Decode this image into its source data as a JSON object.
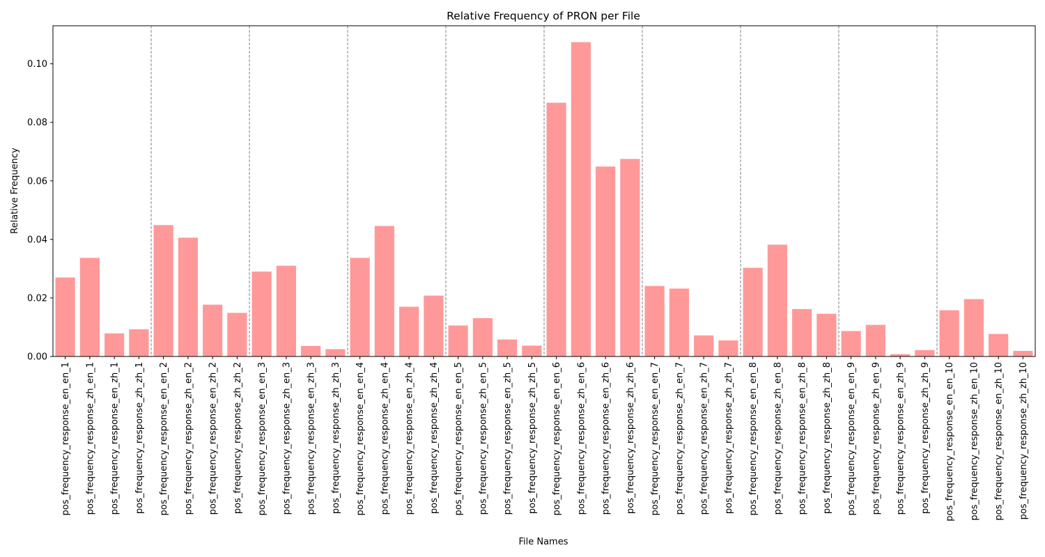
{
  "chart_data": {
    "type": "bar",
    "title": "Relative Frequency of PRON per File",
    "xlabel": "File Names",
    "ylabel": "Relative Frequency",
    "ylim": [
      0,
      0.113
    ],
    "yticks": [
      0.0,
      0.02,
      0.04,
      0.06,
      0.08,
      0.1
    ],
    "ytick_labels": [
      "0.00",
      "0.02",
      "0.04",
      "0.06",
      "0.08",
      "0.10"
    ],
    "bar_color": "#ff9999",
    "group_separator_color": "#808080",
    "group_size": 4,
    "grid": false,
    "legend": "none",
    "categories": [
      "pos_frequency_response_en_en_1",
      "pos_frequency_response_zh_en_1",
      "pos_frequency_response_en_zh_1",
      "pos_frequency_response_zh_zh_1",
      "pos_frequency_response_en_en_2",
      "pos_frequency_response_zh_en_2",
      "pos_frequency_response_en_zh_2",
      "pos_frequency_response_zh_zh_2",
      "pos_frequency_response_en_en_3",
      "pos_frequency_response_zh_en_3",
      "pos_frequency_response_en_zh_3",
      "pos_frequency_response_zh_zh_3",
      "pos_frequency_response_en_en_4",
      "pos_frequency_response_zh_en_4",
      "pos_frequency_response_en_zh_4",
      "pos_frequency_response_zh_zh_4",
      "pos_frequency_response_en_en_5",
      "pos_frequency_response_zh_en_5",
      "pos_frequency_response_en_zh_5",
      "pos_frequency_response_zh_zh_5",
      "pos_frequency_response_en_en_6",
      "pos_frequency_response_zh_en_6",
      "pos_frequency_response_en_zh_6",
      "pos_frequency_response_zh_zh_6",
      "pos_frequency_response_en_en_7",
      "pos_frequency_response_zh_en_7",
      "pos_frequency_response_en_zh_7",
      "pos_frequency_response_zh_zh_7",
      "pos_frequency_response_en_en_8",
      "pos_frequency_response_zh_en_8",
      "pos_frequency_response_en_zh_8",
      "pos_frequency_response_zh_zh_8",
      "pos_frequency_response_en_en_9",
      "pos_frequency_response_zh_en_9",
      "pos_frequency_response_en_zh_9",
      "pos_frequency_response_zh_zh_9",
      "pos_frequency_response_en_en_10",
      "pos_frequency_response_zh_en_10",
      "pos_frequency_response_en_zh_10",
      "pos_frequency_response_zh_zh_10"
    ],
    "values": [
      0.027,
      0.0337,
      0.0079,
      0.0093,
      0.0449,
      0.0406,
      0.0177,
      0.0149,
      0.029,
      0.031,
      0.0036,
      0.0025,
      0.0337,
      0.0446,
      0.017,
      0.0208,
      0.0106,
      0.0131,
      0.0058,
      0.0037,
      0.0867,
      0.1074,
      0.0649,
      0.0675,
      0.0241,
      0.0232,
      0.0072,
      0.0055,
      0.0303,
      0.0382,
      0.0162,
      0.0146,
      0.0087,
      0.0108,
      0.0008,
      0.0022,
      0.0158,
      0.0196,
      0.0077,
      0.0019
    ]
  }
}
